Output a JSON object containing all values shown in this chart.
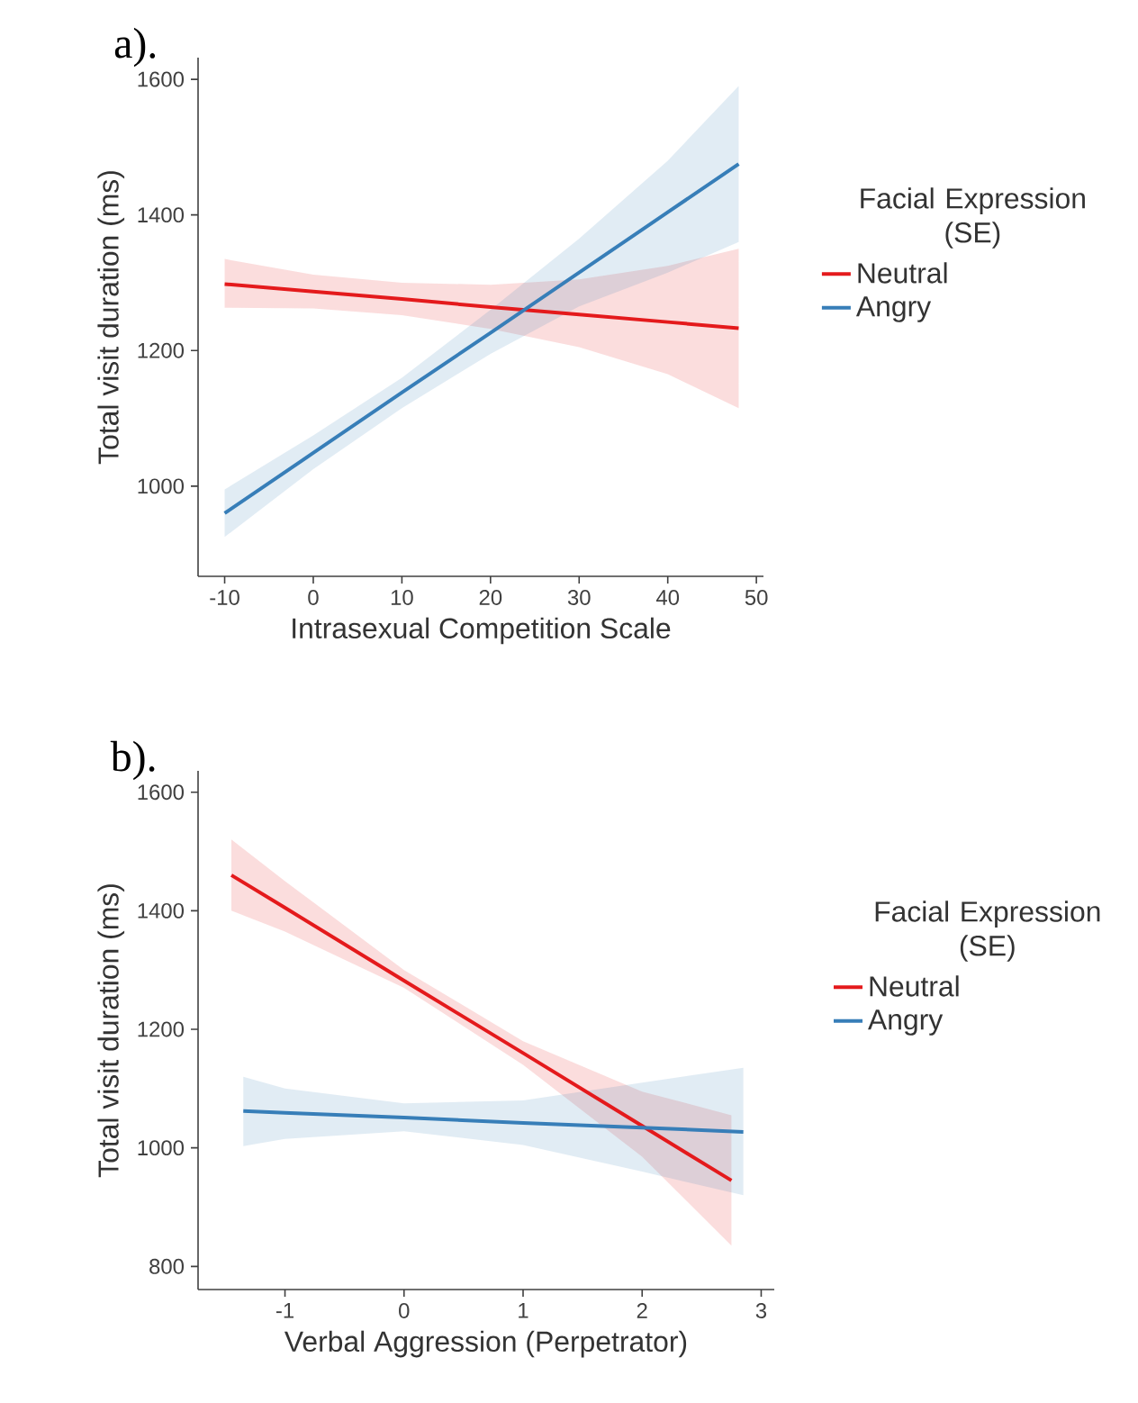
{
  "chart_data": [
    {
      "type": "line",
      "title": "a).",
      "xlabel": "Intrasexual Competition Scale",
      "ylabel": "Total visit duration (ms)",
      "legend_title": "Facial Expression\n(SE)",
      "legend": "right",
      "grid": false,
      "xlim": [
        -13,
        50.8
      ],
      "ylim": [
        867,
        1632
      ],
      "xticks": [
        -10,
        0,
        10,
        20,
        30,
        40,
        50
      ],
      "yticks": [
        1000,
        1200,
        1400,
        1600
      ],
      "x": [
        -10,
        0,
        10,
        20,
        30,
        40,
        48
      ],
      "series": [
        {
          "name": "Neutral",
          "color": "#e41a1c",
          "values": [
            1298,
            1287,
            1276,
            1264,
            1253,
            1242,
            1233
          ],
          "lower": [
            1263,
            1262,
            1252,
            1232,
            1205,
            1165,
            1115
          ],
          "upper": [
            1335,
            1312,
            1300,
            1297,
            1305,
            1325,
            1350
          ]
        },
        {
          "name": "Angry",
          "color": "#377eb8",
          "values": [
            960,
            1049,
            1138,
            1226,
            1315,
            1404,
            1475
          ],
          "lower": [
            925,
            1025,
            1115,
            1195,
            1265,
            1315,
            1360
          ],
          "upper": [
            995,
            1075,
            1160,
            1260,
            1365,
            1480,
            1590
          ]
        }
      ]
    },
    {
      "type": "line",
      "title": "b).",
      "xlabel": "Verbal Aggression (Perpetrator)",
      "ylabel": "Total visit duration (ms)",
      "legend_title": "Facial Expression\n(SE)",
      "legend": "right",
      "grid": false,
      "xlim": [
        -1.73,
        3.11
      ],
      "ylim": [
        761,
        1636
      ],
      "xticks": [
        -1,
        0,
        1,
        2,
        3
      ],
      "yticks": [
        800,
        1000,
        1200,
        1400,
        1600
      ],
      "series": [
        {
          "name": "Neutral",
          "color": "#e41a1c",
          "x": [
            -1.45,
            -1,
            0,
            1,
            2,
            2.75
          ],
          "values": [
            1460,
            1405,
            1282,
            1160,
            1037,
            945
          ],
          "lower": [
            1400,
            1365,
            1270,
            1140,
            985,
            835
          ],
          "upper": [
            1520,
            1450,
            1300,
            1180,
            1095,
            1055
          ]
        },
        {
          "name": "Angry",
          "color": "#377eb8",
          "x": [
            -1.35,
            -1,
            0,
            1,
            2,
            2.85
          ],
          "values": [
            1062,
            1059,
            1051,
            1042,
            1034,
            1027
          ],
          "lower": [
            1003,
            1015,
            1028,
            1005,
            960,
            920
          ],
          "upper": [
            1120,
            1100,
            1075,
            1080,
            1110,
            1135
          ]
        }
      ]
    }
  ]
}
